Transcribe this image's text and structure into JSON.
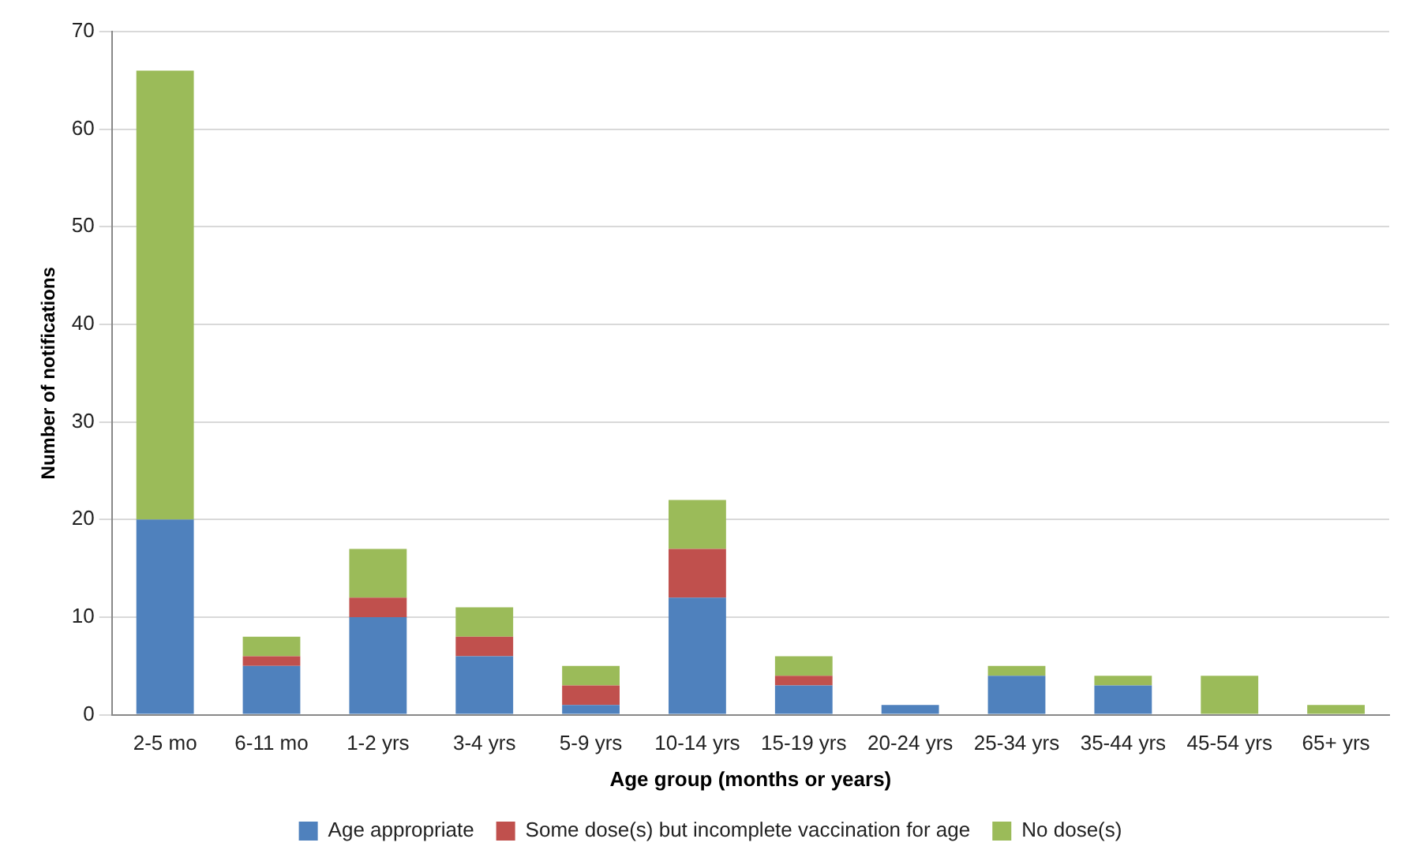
{
  "chart_data": {
    "type": "bar",
    "stacked": true,
    "xlabel": "Age group (months or years)",
    "ylabel": "Number of notifications",
    "categories": [
      "2-5 mo",
      "6-11 mo",
      "1-2 yrs",
      "3-4 yrs",
      "5-9 yrs",
      "10-14 yrs",
      "15-19 yrs",
      "20-24 yrs",
      "25-34 yrs",
      "35-44 yrs",
      "45-54 yrs",
      "65+ yrs"
    ],
    "series": [
      {
        "name": "Age appropriate",
        "color": "#4f81bd",
        "values": [
          20,
          5,
          10,
          6,
          1,
          12,
          3,
          1,
          4,
          3,
          0,
          0
        ]
      },
      {
        "name": "Some dose(s) but incomplete vaccination for age",
        "color": "#c0504d",
        "values": [
          0,
          1,
          2,
          2,
          2,
          5,
          1,
          0,
          0,
          0,
          0,
          0
        ]
      },
      {
        "name": "No dose(s)",
        "color": "#9bbb59",
        "values": [
          46,
          2,
          5,
          3,
          2,
          5,
          2,
          0,
          1,
          1,
          4,
          1
        ]
      }
    ],
    "ylim": [
      0,
      70
    ],
    "yticks": [
      0,
      10,
      20,
      30,
      40,
      50,
      60,
      70
    ],
    "grid": "y",
    "legend": "bottom"
  }
}
